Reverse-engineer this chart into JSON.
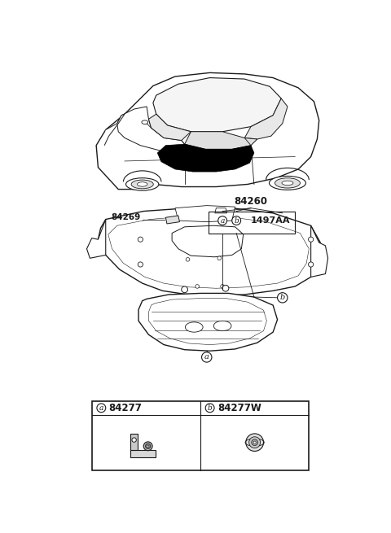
{
  "bg": "#ffffff",
  "line_color": "#1a1a1a",
  "label_84260": "84260",
  "label_84269": "84269",
  "label_1497AA": "1497AA",
  "part_a_num": "84277",
  "part_b_num": "84277W"
}
